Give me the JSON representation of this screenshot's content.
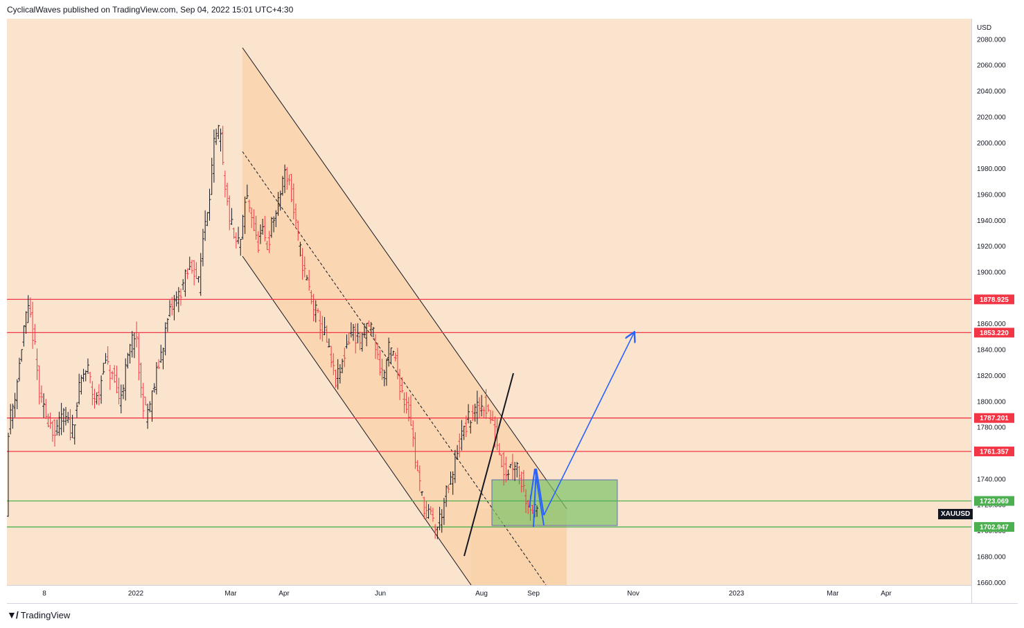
{
  "header": {
    "published_text": "CyclicalWaves published on TradingView.com, Sep 04, 2022 15:01 UTC+4:30"
  },
  "footer": {
    "brand": "TradingView"
  },
  "chart_data": {
    "type": "bar",
    "symbol": "XAUUSD",
    "currency": "USD",
    "y_axis_ticks": [
      1660,
      1680,
      1700,
      1720,
      1740,
      1760,
      1780,
      1800,
      1820,
      1840,
      1860,
      1880,
      1900,
      1920,
      1940,
      1960,
      1980,
      2000,
      2020,
      2040,
      2060,
      2080
    ],
    "y_tick_labels": [
      "1660.000",
      "1680.000",
      "1700.000",
      "1720.000",
      "1740.000",
      "1760.000",
      "1780.000",
      "1800.000",
      "1820.000",
      "1840.000",
      "1860.000",
      "1880.000",
      "1900.000",
      "1920.000",
      "1940.000",
      "1960.000",
      "1980.000",
      "2000.000",
      "2020.000",
      "2040.000",
      "2060.000",
      "2080.000"
    ],
    "ylim": [
      1658,
      2096
    ],
    "x_axis_labels": [
      "8",
      "2022",
      "Mar",
      "Apr",
      "Jun",
      "Aug",
      "Sep",
      "Nov",
      "2023",
      "Mar",
      "Apr"
    ],
    "horizontal_levels": [
      {
        "value": 1878.925,
        "label": "1878.925",
        "color": "#f23645"
      },
      {
        "value": 1853.22,
        "label": "1853.220",
        "color": "#f23645"
      },
      {
        "value": 1787.201,
        "label": "1787.201",
        "color": "#f23645"
      },
      {
        "value": 1761.357,
        "label": "1761.357",
        "color": "#f23645"
      },
      {
        "value": 1723.069,
        "label": "1723.069",
        "color": "#4caf50"
      },
      {
        "value": 1702.947,
        "label": "1702.947",
        "color": "#4caf50"
      }
    ],
    "price_path": [
      [
        0,
        1780
      ],
      [
        0.25,
        1800
      ],
      [
        0.5,
        1825
      ],
      [
        0.75,
        1860
      ],
      [
        1.0,
        1870
      ],
      [
        1.25,
        1840
      ],
      [
        1.5,
        1800
      ],
      [
        1.75,
        1790
      ],
      [
        2.0,
        1785
      ],
      [
        2.25,
        1770
      ],
      [
        2.5,
        1790
      ],
      [
        2.75,
        1785
      ],
      [
        3.0,
        1775
      ],
      [
        3.25,
        1800
      ],
      [
        3.5,
        1820
      ],
      [
        3.75,
        1825
      ],
      [
        4.0,
        1805
      ],
      [
        4.25,
        1800
      ],
      [
        4.5,
        1830
      ],
      [
        4.75,
        1825
      ],
      [
        5.0,
        1815
      ],
      [
        5.25,
        1800
      ],
      [
        5.5,
        1820
      ],
      [
        5.75,
        1840
      ],
      [
        6.0,
        1855
      ],
      [
        6.25,
        1810
      ],
      [
        6.5,
        1790
      ],
      [
        6.75,
        1800
      ],
      [
        7.0,
        1820
      ],
      [
        7.25,
        1840
      ],
      [
        7.5,
        1860
      ],
      [
        7.75,
        1875
      ],
      [
        8.0,
        1880
      ],
      [
        8.25,
        1890
      ],
      [
        8.5,
        1900
      ],
      [
        8.75,
        1905
      ],
      [
        9.0,
        1890
      ],
      [
        9.25,
        1935
      ],
      [
        9.5,
        1960
      ],
      [
        9.75,
        2000
      ],
      [
        10.0,
        2010
      ],
      [
        10.25,
        1960
      ],
      [
        10.5,
        1940
      ],
      [
        10.75,
        1920
      ],
      [
        11.0,
        1925
      ],
      [
        11.25,
        1960
      ],
      [
        11.5,
        1945
      ],
      [
        11.75,
        1920
      ],
      [
        12.0,
        1930
      ],
      [
        12.25,
        1920
      ],
      [
        12.5,
        1940
      ],
      [
        12.75,
        1950
      ],
      [
        13.0,
        1975
      ],
      [
        13.25,
        1975
      ],
      [
        13.5,
        1945
      ],
      [
        13.75,
        1920
      ],
      [
        14.0,
        1900
      ],
      [
        14.25,
        1885
      ],
      [
        14.5,
        1870
      ],
      [
        14.75,
        1860
      ],
      [
        15.0,
        1850
      ],
      [
        15.25,
        1830
      ],
      [
        15.5,
        1815
      ],
      [
        15.75,
        1825
      ],
      [
        16.0,
        1845
      ],
      [
        16.25,
        1855
      ],
      [
        16.5,
        1850
      ],
      [
        16.75,
        1845
      ],
      [
        17.0,
        1860
      ],
      [
        17.25,
        1855
      ],
      [
        17.5,
        1830
      ],
      [
        17.75,
        1820
      ],
      [
        18.0,
        1840
      ],
      [
        18.25,
        1835
      ],
      [
        18.5,
        1815
      ],
      [
        18.75,
        1800
      ],
      [
        19.0,
        1790
      ],
      [
        19.25,
        1755
      ],
      [
        19.5,
        1730
      ],
      [
        19.75,
        1715
      ],
      [
        20.0,
        1710
      ],
      [
        20.25,
        1700
      ],
      [
        20.5,
        1715
      ],
      [
        20.75,
        1730
      ],
      [
        21.0,
        1740
      ],
      [
        21.25,
        1765
      ],
      [
        21.5,
        1775
      ],
      [
        21.75,
        1785
      ],
      [
        22.0,
        1790
      ],
      [
        22.25,
        1795
      ],
      [
        22.5,
        1798
      ],
      [
        22.75,
        1790
      ],
      [
        23.0,
        1775
      ],
      [
        23.25,
        1760
      ],
      [
        23.5,
        1745
      ],
      [
        23.75,
        1750
      ],
      [
        24.0,
        1755
      ],
      [
        24.25,
        1740
      ],
      [
        24.5,
        1725
      ],
      [
        24.75,
        1718
      ],
      [
        25.0,
        1712
      ]
    ],
    "projection_path": [
      [
        1728,
        1703
      ],
      [
        1746,
        1748
      ],
      [
        1716,
        1712
      ]
    ],
    "target_arrow": {
      "from": 1712,
      "to": 1853
    }
  }
}
